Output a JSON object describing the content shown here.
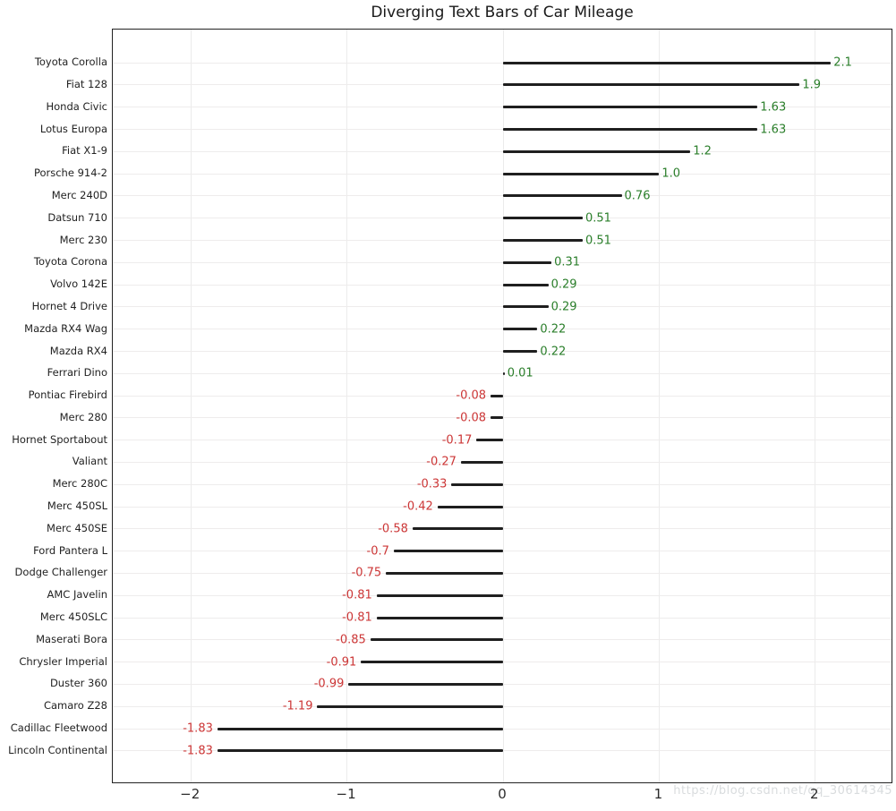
{
  "title": "Diverging Text Bars of Car Mileage",
  "watermark": "https://blog.csdn.net/qq_30614345",
  "colors": {
    "positive_label": "#2a7e2a",
    "negative_label": "#cc3636",
    "bar": "#1f1f1f",
    "grid": "#ebebeb",
    "spine": "#222222"
  },
  "chart_data": {
    "type": "bar",
    "orientation": "horizontal",
    "title": "Diverging Text Bars of Car Mileage",
    "xlabel": "",
    "ylabel": "",
    "xlim": [
      -2.5,
      2.5
    ],
    "xticks": [
      -2,
      -1,
      0,
      1,
      2
    ],
    "xtick_labels": [
      "−2",
      "−1",
      "0",
      "1",
      "2"
    ],
    "grid": true,
    "legend": false,
    "categories": [
      "Toyota Corolla",
      "Fiat 128",
      "Honda Civic",
      "Lotus Europa",
      "Fiat X1-9",
      "Porsche 914-2",
      "Merc 240D",
      "Datsun 710",
      "Merc 230",
      "Toyota Corona",
      "Volvo 142E",
      "Hornet 4 Drive",
      "Mazda RX4 Wag",
      "Mazda RX4",
      "Ferrari Dino",
      "Pontiac Firebird",
      "Merc 280",
      "Hornet Sportabout",
      "Valiant",
      "Merc 280C",
      "Merc 450SL",
      "Merc 450SE",
      "Ford Pantera L",
      "Dodge Challenger",
      "AMC Javelin",
      "Merc 450SLC",
      "Maserati Bora",
      "Chrysler Imperial",
      "Duster 360",
      "Camaro Z28",
      "Cadillac Fleetwood",
      "Lincoln Continental"
    ],
    "values": [
      2.1,
      1.9,
      1.63,
      1.63,
      1.2,
      1.0,
      0.76,
      0.51,
      0.51,
      0.31,
      0.29,
      0.29,
      0.22,
      0.22,
      0.01,
      -0.08,
      -0.08,
      -0.17,
      -0.27,
      -0.33,
      -0.42,
      -0.58,
      -0.7,
      -0.75,
      -0.81,
      -0.81,
      -0.85,
      -0.91,
      -0.99,
      -1.19,
      -1.83,
      -1.83
    ],
    "value_labels": [
      "2.1",
      "1.9",
      "1.63",
      "1.63",
      "1.2",
      "1.0",
      "0.76",
      "0.51",
      "0.51",
      "0.31",
      "0.29",
      "0.29",
      "0.22",
      "0.22",
      "0.01",
      "-0.08",
      "-0.08",
      "-0.17",
      "-0.27",
      "-0.33",
      "-0.42",
      "-0.58",
      "-0.7",
      "-0.75",
      "-0.81",
      "-0.81",
      "-0.85",
      "-0.91",
      "-0.99",
      "-1.19",
      "-1.83",
      "-1.83"
    ]
  }
}
